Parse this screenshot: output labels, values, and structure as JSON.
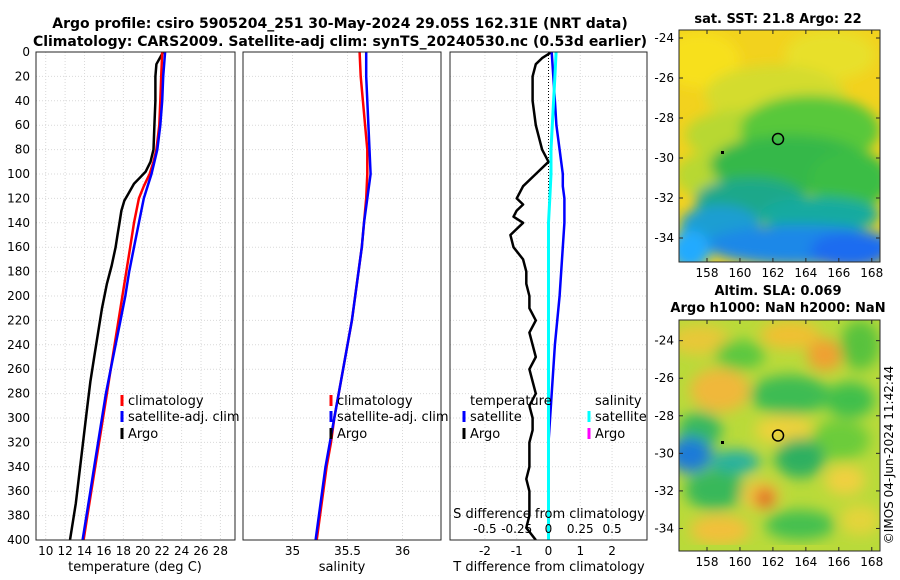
{
  "header": {
    "line1": "Argo profile: csiro 5905204_251 30-May-2024 29.05S 162.31E (NRT data)",
    "line2": "Climatology: CARS2009. Satellite-adj clim: synTS_20240530.nc (0.53d earlier)"
  },
  "colors": {
    "climatology": "#ff0000",
    "satellite": "#0000ff",
    "argo": "#000000",
    "sal_satellite": "#00ffff",
    "sal_argo": "#ff00ff"
  },
  "chart_data": [
    {
      "type": "line",
      "id": "temperature",
      "xlabel": "temperature (deg C)",
      "ylabel": "",
      "xlim": [
        9,
        29.5
      ],
      "ylim": [
        400,
        0
      ],
      "xticks": [
        10,
        12,
        14,
        16,
        18,
        20,
        22,
        24,
        26,
        28
      ],
      "yticks": [
        0,
        20,
        40,
        60,
        80,
        100,
        120,
        140,
        160,
        180,
        200,
        220,
        240,
        260,
        280,
        300,
        320,
        340,
        360,
        380,
        400
      ],
      "grid": true,
      "legend": {
        "labels": [
          "climatology",
          "satellite-adj. clim",
          "Argo"
        ],
        "placement": "lower-right"
      },
      "series": [
        {
          "name": "climatology",
          "depth": [
            0,
            20,
            40,
            60,
            80,
            90,
            100,
            110,
            120,
            140,
            160,
            180,
            200,
            220,
            240,
            260,
            280,
            300,
            320,
            340,
            360,
            380,
            400
          ],
          "values": [
            22.0,
            21.9,
            21.8,
            21.7,
            21.4,
            21.1,
            20.7,
            20.1,
            19.6,
            19.1,
            18.7,
            18.3,
            17.9,
            17.5,
            17.1,
            16.7,
            16.3,
            15.9,
            15.5,
            15.1,
            14.7,
            14.3,
            13.9
          ]
        },
        {
          "name": "satellite-adj. clim",
          "depth": [
            0,
            20,
            40,
            60,
            80,
            90,
            100,
            110,
            120,
            140,
            160,
            180,
            200,
            220,
            240,
            260,
            280,
            300,
            320,
            340,
            360,
            380,
            400
          ],
          "values": [
            22.3,
            22.1,
            22.0,
            21.8,
            21.5,
            21.2,
            20.9,
            20.5,
            20.1,
            19.6,
            19.1,
            18.6,
            18.2,
            17.7,
            17.2,
            16.7,
            16.2,
            15.8,
            15.4,
            15.0,
            14.6,
            14.2,
            13.8
          ]
        },
        {
          "name": "Argo",
          "depth": [
            0,
            10,
            20,
            40,
            60,
            80,
            90,
            98,
            103,
            108,
            115,
            122,
            130,
            140,
            150,
            160,
            175,
            190,
            210,
            230,
            250,
            270,
            290,
            310,
            330,
            350,
            370,
            385,
            400
          ],
          "values": [
            22.1,
            21.4,
            21.3,
            21.3,
            21.2,
            21.1,
            20.8,
            20.3,
            19.7,
            19.1,
            18.6,
            18.1,
            17.8,
            17.6,
            17.4,
            17.2,
            16.8,
            16.3,
            15.8,
            15.4,
            15.0,
            14.6,
            14.3,
            14.0,
            13.7,
            13.4,
            13.1,
            12.8,
            12.5
          ]
        }
      ]
    },
    {
      "type": "line",
      "id": "salinity",
      "xlabel": "salinity",
      "xlim": [
        34.55,
        36.35
      ],
      "ylim": [
        400,
        0
      ],
      "xticks": [
        35,
        35.5,
        36
      ],
      "xticklabels": [
        "35",
        "35.5",
        "36"
      ],
      "grid": true,
      "legend": {
        "labels": [
          "climatology",
          "satellite-adj. clim",
          "Argo"
        ],
        "placement": "lower-right"
      },
      "series": [
        {
          "name": "climatology",
          "depth": [
            0,
            20,
            40,
            60,
            80,
            100,
            120,
            140,
            160,
            180,
            200,
            220,
            240,
            260,
            280,
            300,
            320,
            340,
            360,
            380,
            400
          ],
          "values": [
            35.61,
            35.62,
            35.64,
            35.66,
            35.68,
            35.68,
            35.67,
            35.65,
            35.63,
            35.6,
            35.57,
            35.54,
            35.5,
            35.46,
            35.42,
            35.38,
            35.35,
            35.31,
            35.28,
            35.25,
            35.22
          ]
        },
        {
          "name": "satellite-adj. clim",
          "depth": [
            0,
            20,
            40,
            60,
            80,
            100,
            120,
            140,
            160,
            180,
            200,
            220,
            240,
            260,
            280,
            300,
            320,
            340,
            360,
            380,
            400
          ],
          "values": [
            35.67,
            35.67,
            35.68,
            35.69,
            35.7,
            35.71,
            35.68,
            35.65,
            35.63,
            35.6,
            35.57,
            35.54,
            35.5,
            35.46,
            35.42,
            35.38,
            35.34,
            35.3,
            35.27,
            35.24,
            35.21
          ]
        }
      ]
    },
    {
      "type": "line",
      "id": "differences",
      "xlabel": "T difference from climatology",
      "xlabel_top": "S difference from climatology",
      "xlim": [
        -3.1,
        3.1
      ],
      "ylim": [
        400,
        0
      ],
      "xticks": [
        -2,
        -1,
        0,
        1,
        2
      ],
      "top_xticks": [
        -0.5,
        -0.25,
        0,
        0.25,
        0.5
      ],
      "top_xticklabels": [
        "-0.5",
        "-0.25",
        "0",
        "0.25",
        "0.5"
      ],
      "legend_temperature": {
        "title": "temperature",
        "labels": [
          "satellite",
          "Argo"
        ]
      },
      "legend_salinity": {
        "title": "salinity",
        "labels": [
          "satellite",
          "Argo"
        ]
      },
      "series": [
        {
          "name": "T satellite",
          "depth": [
            0,
            20,
            40,
            60,
            80,
            90,
            100,
            110,
            120,
            140,
            160,
            200,
            240,
            280,
            320,
            360,
            400
          ],
          "values": [
            0.1,
            0.15,
            0.2,
            0.25,
            0.35,
            0.4,
            0.45,
            0.45,
            0.5,
            0.5,
            0.45,
            0.35,
            0.2,
            0.1,
            0.0,
            0.0,
            0.0
          ]
        },
        {
          "name": "T Argo",
          "depth": [
            0,
            5,
            10,
            20,
            40,
            60,
            80,
            90,
            100,
            110,
            115,
            120,
            125,
            130,
            135,
            140,
            150,
            160,
            170,
            180,
            190,
            200,
            210,
            220,
            230,
            240,
            250,
            260,
            270,
            280,
            290,
            300,
            310,
            320,
            330,
            340,
            350,
            360,
            370,
            380,
            390,
            400
          ],
          "values": [
            0.1,
            -0.2,
            -0.4,
            -0.5,
            -0.5,
            -0.4,
            -0.2,
            0.0,
            -0.4,
            -0.8,
            -0.9,
            -1.0,
            -0.8,
            -1.0,
            -1.1,
            -0.8,
            -1.2,
            -1.1,
            -0.8,
            -0.7,
            -0.7,
            -0.6,
            -0.6,
            -0.4,
            -0.6,
            -0.5,
            -0.4,
            -0.6,
            -0.5,
            -0.4,
            -0.6,
            -0.5,
            -0.5,
            -0.6,
            -0.6,
            -0.6,
            -0.7,
            -0.6,
            -0.6,
            -0.6,
            -0.7,
            -0.4
          ]
        },
        {
          "name": "S satellite",
          "depth": [
            0,
            20,
            40,
            60,
            80,
            100,
            120,
            140,
            160,
            200,
            240,
            280,
            320,
            360,
            400
          ],
          "values": [
            0.06,
            0.05,
            0.04,
            0.03,
            0.02,
            0.02,
            0.01,
            0.0,
            0.0,
            0.0,
            0.0,
            0.0,
            0.0,
            0.0,
            0.0
          ]
        }
      ]
    },
    {
      "type": "heatmap",
      "id": "sst_map",
      "title": "sat. SST: 21.8 Argo: 22",
      "xlim": [
        156.3,
        168.5
      ],
      "ylim": [
        -35.2,
        -23.6
      ],
      "xticks": [
        158,
        160,
        162,
        164,
        166,
        168
      ],
      "yticks": [
        -24,
        -26,
        -28,
        -30,
        -32,
        -34
      ],
      "marker": {
        "lon": 162.31,
        "lat": -29.05
      }
    },
    {
      "type": "heatmap",
      "id": "sla_map",
      "title_line1": "Altim. SLA: 0.069",
      "title_line2": "Argo h1000: NaN h2000: NaN",
      "xlim": [
        156.3,
        168.5
      ],
      "ylim": [
        -35.2,
        -22.9
      ],
      "xticks": [
        158,
        160,
        162,
        164,
        166,
        168
      ],
      "yticks": [
        -24,
        -26,
        -28,
        -30,
        -32,
        -34
      ],
      "marker": {
        "lon": 162.31,
        "lat": -29.05
      }
    }
  ],
  "watermark": "©IMOS 04-Jun-2024 11:42:44"
}
